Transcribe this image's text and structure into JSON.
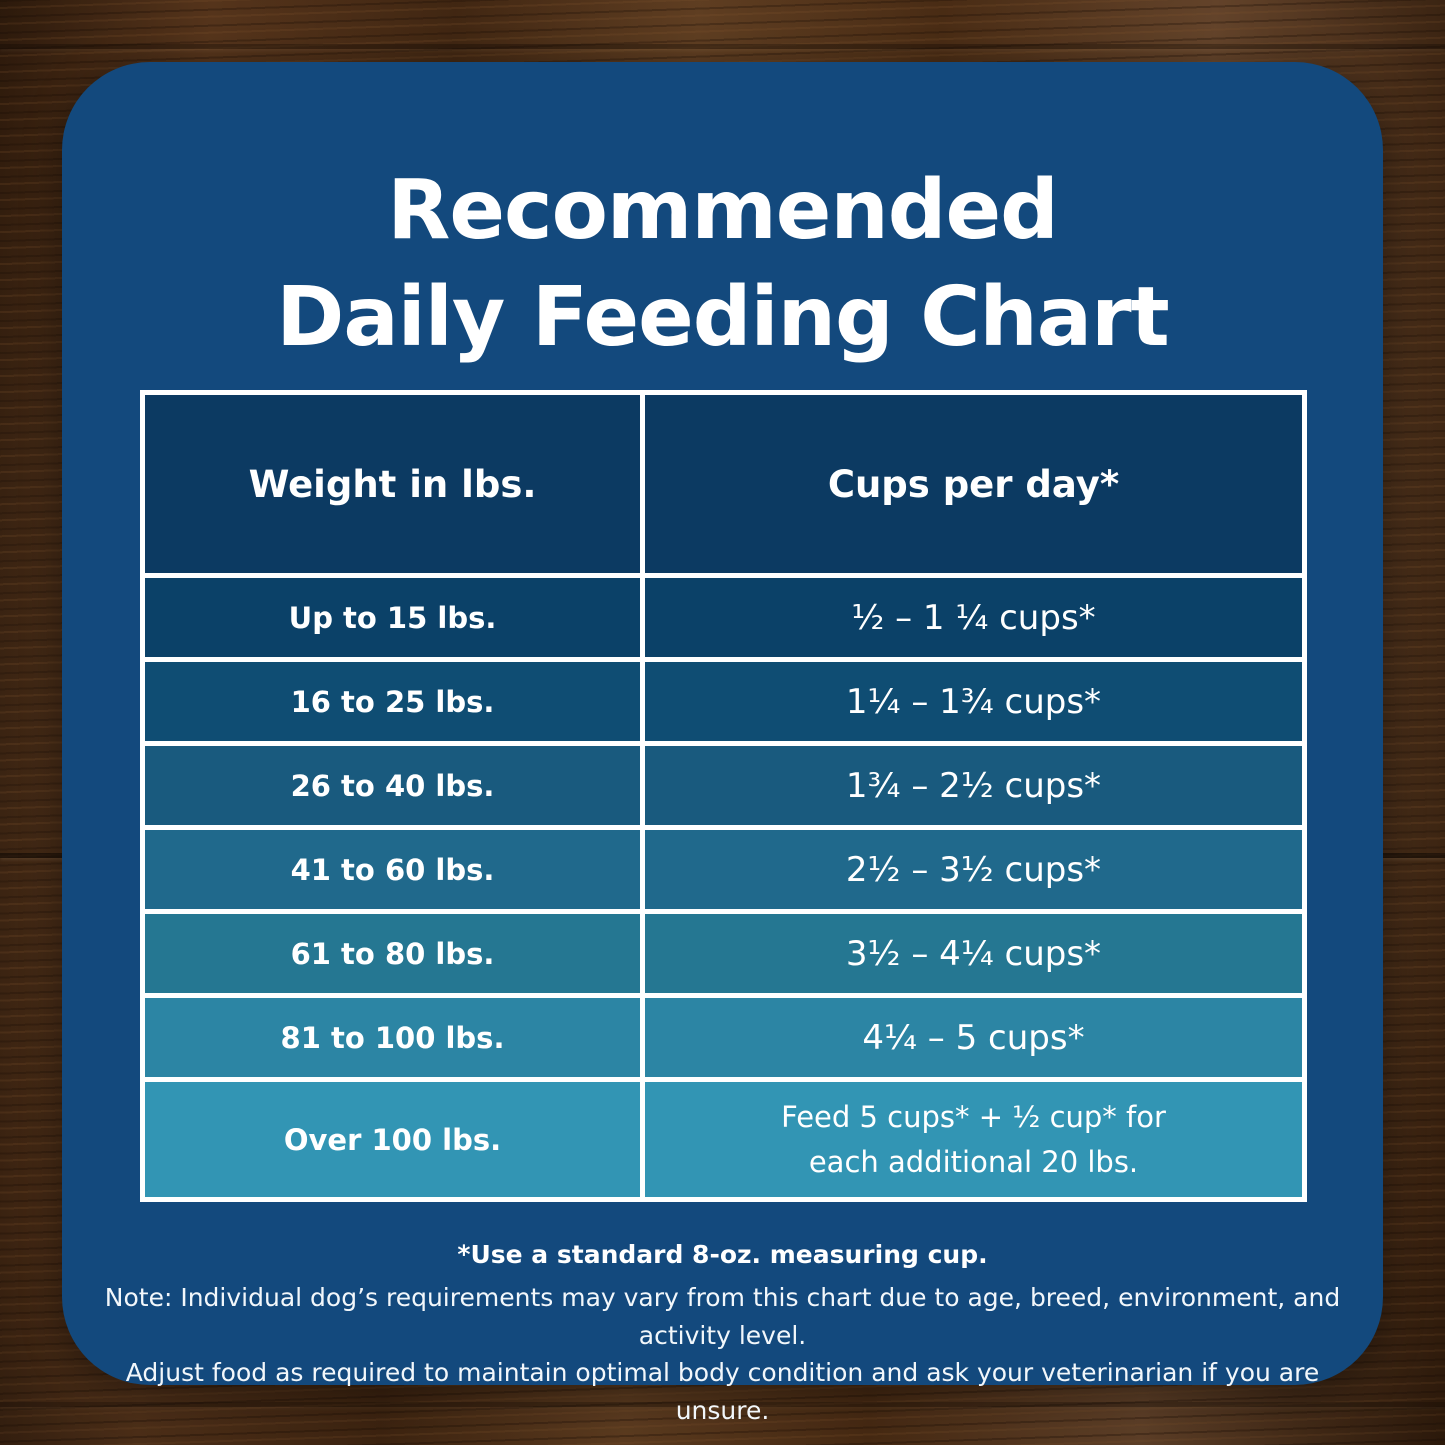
{
  "colors": {
    "card_bg": "#13497D",
    "header_bg": "#0C3A62",
    "table_border": "#FFFFFF",
    "title_text": "#FFFFFF",
    "row_colors": [
      "#0B4168",
      "#0F4D73",
      "#195A7E",
      "#20698C",
      "#257792",
      "#2C85A4",
      "#3295B4"
    ]
  },
  "title": {
    "line1": "Recommended",
    "line2": "Daily Feeding Chart"
  },
  "table": {
    "headers": {
      "weight": "Weight in lbs.",
      "cups": "Cups per day*"
    },
    "rows": [
      {
        "weight": "Up to 15 lbs.",
        "cups": "½ – 1 ¼ cups*"
      },
      {
        "weight": "16 to 25 lbs.",
        "cups": "1¼ – 1¾  cups*"
      },
      {
        "weight": "26 to 40 lbs.",
        "cups": "1¾ – 2½ cups*"
      },
      {
        "weight": "41 to 60 lbs.",
        "cups": "2½ – 3½ cups*"
      },
      {
        "weight": "61 to 80 lbs.",
        "cups": "3½ – 4¼ cups*"
      },
      {
        "weight": "81 to 100 lbs.",
        "cups": "4¼ – 5 cups*"
      },
      {
        "weight": "Over 100 lbs.",
        "cups_line1": "Feed 5 cups* + ½ cup* for",
        "cups_line2": "each additional 20 lbs."
      }
    ]
  },
  "footer": {
    "measuring_note": "*Use a standard 8-oz. measuring cup.",
    "note_line1": "Note: Individual dog’s requirements may vary from this chart due to age, breed, environment, and activity level.",
    "note_line2": "Adjust food as required to maintain optimal body condition and ask your veterinarian if you are unsure."
  },
  "chart_data": {
    "type": "table",
    "title": "Recommended Daily Feeding Chart",
    "columns": [
      "Weight in lbs.",
      "Cups per day*"
    ],
    "rows": [
      [
        "Up to 15 lbs.",
        "½ – 1 ¼ cups*"
      ],
      [
        "16 to 25 lbs.",
        "1¼ – 1¾ cups*"
      ],
      [
        "26 to 40 lbs.",
        "1¾ – 2½ cups*"
      ],
      [
        "41 to 60 lbs.",
        "2½ – 3½ cups*"
      ],
      [
        "61 to 80 lbs.",
        "3½ – 4¼ cups*"
      ],
      [
        "81 to 100 lbs.",
        "4¼ – 5 cups*"
      ],
      [
        "Over 100 lbs.",
        "Feed 5 cups* + ½ cup* for each additional 20 lbs."
      ]
    ],
    "footnotes": [
      "*Use a standard 8-oz. measuring cup.",
      "Note: Individual dog’s requirements may vary from this chart due to age, breed, environment, and activity level. Adjust food as required to maintain optimal body condition and ask your veterinarian if you are unsure."
    ]
  }
}
